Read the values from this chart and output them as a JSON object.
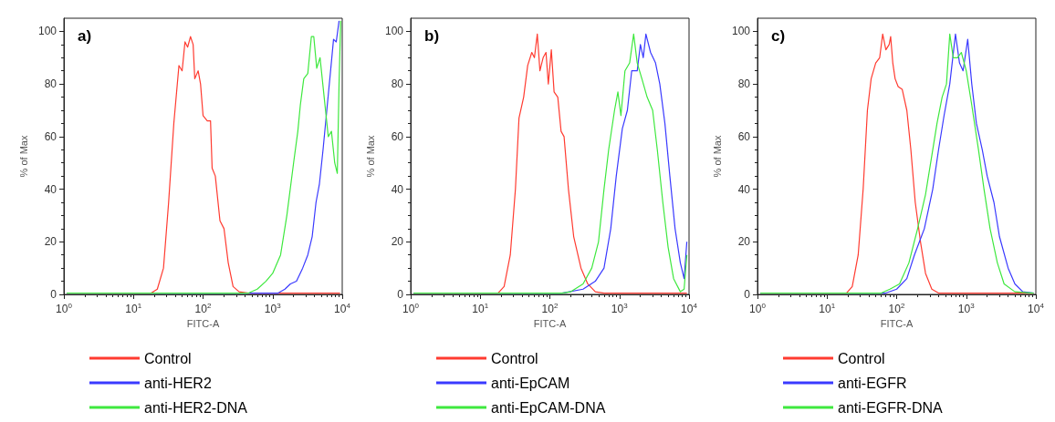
{
  "chart_data": [
    {
      "type": "line",
      "title": "a)",
      "xlabel": "FITC-A",
      "ylabel": "% of Max",
      "log": "x",
      "xlim": [
        1,
        10000
      ],
      "xticks": [
        {
          "value": 1,
          "label": "10$^{0}$"
        },
        {
          "value": 10,
          "label": "10$^{1}$"
        },
        {
          "value": 100,
          "label": "10$^{2}$"
        },
        {
          "value": 1000,
          "label": "10$^{3}$"
        },
        {
          "value": 10000,
          "label": "10$^{4}$"
        }
      ],
      "ylim": [
        0,
        105
      ],
      "yticks": [
        0,
        20,
        40,
        60,
        80,
        100
      ],
      "grid": false,
      "legend": "bottom",
      "marker": "none",
      "line_style": "solid",
      "series": [
        {
          "name": "Control",
          "color": "#ff3b30",
          "x": [
            1.1,
            18,
            22,
            27,
            32,
            38,
            45,
            50,
            55,
            60,
            66,
            72,
            76,
            85,
            92,
            100,
            115,
            128,
            135,
            150,
            175,
            200,
            230,
            270,
            330,
            450,
            9300
          ],
          "values": [
            0.5,
            0.5,
            2,
            10,
            35,
            65,
            87,
            85,
            96,
            94,
            98,
            95,
            82,
            85,
            80,
            68,
            66,
            66,
            48,
            45,
            28,
            25,
            12,
            3,
            1,
            0.5,
            0.5
          ]
        },
        {
          "name": "anti-HER2",
          "color": "#3a3aff",
          "x": [
            1.1,
            1200,
            1500,
            1800,
            2200,
            2700,
            3200,
            3700,
            4200,
            4700,
            5300,
            6000,
            6800,
            7500,
            8200,
            9000
          ],
          "values": [
            0.5,
            0.5,
            2,
            4,
            5,
            10,
            15,
            22,
            35,
            42,
            55,
            70,
            85,
            97,
            96,
            104
          ]
        },
        {
          "name": "anti-HER2-DNA",
          "color": "#3ee83e",
          "x": [
            1.1,
            450,
            600,
            800,
            1000,
            1300,
            1600,
            2000,
            2300,
            2500,
            2800,
            3200,
            3600,
            3900,
            4300,
            4800,
            5500,
            6300,
            7000,
            7800,
            8500,
            9000,
            9500
          ],
          "values": [
            0.5,
            0.5,
            2,
            5,
            8,
            15,
            30,
            50,
            62,
            72,
            82,
            84,
            98,
            98,
            86,
            90,
            75,
            60,
            62,
            50,
            46,
            80,
            104
          ]
        }
      ]
    },
    {
      "type": "line",
      "title": "b)",
      "xlabel": "FITC-A",
      "ylabel": "% of Max",
      "log": "x",
      "xlim": [
        1,
        10000
      ],
      "xticks": [
        {
          "value": 1,
          "label": "10$^{0}$"
        },
        {
          "value": 10,
          "label": "10$^{1}$"
        },
        {
          "value": 100,
          "label": "10$^{2}$"
        },
        {
          "value": 1000,
          "label": "10$^{3}$"
        },
        {
          "value": 10000,
          "label": "10$^{4}$"
        }
      ],
      "ylim": [
        0,
        105
      ],
      "yticks": [
        0,
        20,
        40,
        60,
        80,
        100
      ],
      "grid": false,
      "legend": "bottom",
      "marker": "none",
      "line_style": "solid",
      "series": [
        {
          "name": "Control",
          "color": "#ff3b30",
          "x": [
            1.1,
            18,
            22,
            27,
            32,
            36,
            42,
            48,
            55,
            60,
            66,
            72,
            80,
            88,
            95,
            105,
            115,
            130,
            145,
            160,
            185,
            220,
            280,
            350,
            450,
            600,
            9300
          ],
          "values": [
            0.5,
            0.5,
            3,
            15,
            40,
            67,
            75,
            87,
            92,
            90,
            99,
            85,
            90,
            92,
            80,
            93,
            77,
            75,
            62,
            60,
            40,
            22,
            10,
            4,
            1,
            0.5,
            0.5
          ]
        },
        {
          "name": "anti-EpCAM",
          "color": "#3a3aff",
          "x": [
            1.1,
            150,
            300,
            450,
            600,
            750,
            900,
            1100,
            1300,
            1500,
            1800,
            2000,
            2200,
            2400,
            2800,
            3300,
            3800,
            4500,
            5300,
            6300,
            7500,
            8500,
            9300
          ],
          "values": [
            0.5,
            0.5,
            2,
            5,
            10,
            25,
            45,
            63,
            70,
            85,
            85,
            95,
            90,
            99,
            92,
            88,
            80,
            65,
            45,
            25,
            12,
            6,
            20
          ]
        },
        {
          "name": "anti-EpCAM-DNA",
          "color": "#3ee83e",
          "x": [
            1.1,
            150,
            200,
            300,
            400,
            500,
            600,
            700,
            850,
            950,
            1050,
            1200,
            1400,
            1600,
            1800,
            2100,
            2500,
            3000,
            3500,
            4200,
            5000,
            6000,
            7500,
            8500,
            9300
          ],
          "values": [
            0.5,
            0.5,
            1,
            4,
            10,
            20,
            40,
            55,
            70,
            77,
            68,
            85,
            88,
            99,
            88,
            82,
            75,
            70,
            55,
            35,
            18,
            6,
            1,
            2,
            15
          ]
        }
      ]
    },
    {
      "type": "line",
      "title": "c)",
      "xlabel": "FITC-A",
      "ylabel": "% of Max",
      "log": "x",
      "xlim": [
        1,
        10000
      ],
      "xticks": [
        {
          "value": 1,
          "label": "10$^{0}$"
        },
        {
          "value": 10,
          "label": "10$^{1}$"
        },
        {
          "value": 100,
          "label": "10$^{2}$"
        },
        {
          "value": 1000,
          "label": "10$^{3}$"
        },
        {
          "value": 10000,
          "label": "10$^{4}$"
        }
      ],
      "ylim": [
        0,
        105
      ],
      "yticks": [
        0,
        20,
        40,
        60,
        80,
        100
      ],
      "grid": false,
      "legend": "bottom",
      "marker": "none",
      "line_style": "solid",
      "series": [
        {
          "name": "Control",
          "color": "#ff3b30",
          "x": [
            1.1,
            19,
            23,
            28,
            33,
            38,
            43,
            50,
            57,
            63,
            70,
            78,
            82,
            88,
            95,
            105,
            120,
            140,
            160,
            185,
            220,
            260,
            320,
            400,
            9300
          ],
          "values": [
            0.5,
            0.5,
            3,
            15,
            40,
            70,
            82,
            88,
            90,
            99,
            93,
            95,
            98,
            88,
            82,
            79,
            78,
            70,
            55,
            35,
            20,
            8,
            2,
            0.5,
            0.5
          ]
        },
        {
          "name": "anti-EGFR",
          "color": "#3a3aff",
          "x": [
            1.1,
            70,
            100,
            140,
            180,
            250,
            330,
            400,
            480,
            580,
            700,
            800,
            900,
            1050,
            1200,
            1400,
            1700,
            2000,
            2500,
            3000,
            4000,
            5000,
            6500,
            9300
          ],
          "values": [
            0.5,
            0.5,
            2,
            6,
            15,
            25,
            40,
            55,
            68,
            80,
            99,
            88,
            85,
            97,
            80,
            65,
            55,
            45,
            35,
            22,
            10,
            4,
            1,
            0.5
          ]
        },
        {
          "name": "anti-EGFR-DNA",
          "color": "#3ee83e",
          "x": [
            1.1,
            60,
            80,
            110,
            150,
            200,
            260,
            330,
            380,
            450,
            520,
            580,
            650,
            750,
            850,
            1000,
            1200,
            1500,
            1800,
            2200,
            2800,
            3500,
            5000,
            9300
          ],
          "values": [
            0.5,
            0.5,
            2,
            4,
            12,
            25,
            38,
            55,
            65,
            75,
            80,
            99,
            90,
            90,
            92,
            85,
            72,
            55,
            40,
            25,
            12,
            4,
            1,
            0.5
          ]
        }
      ]
    }
  ]
}
